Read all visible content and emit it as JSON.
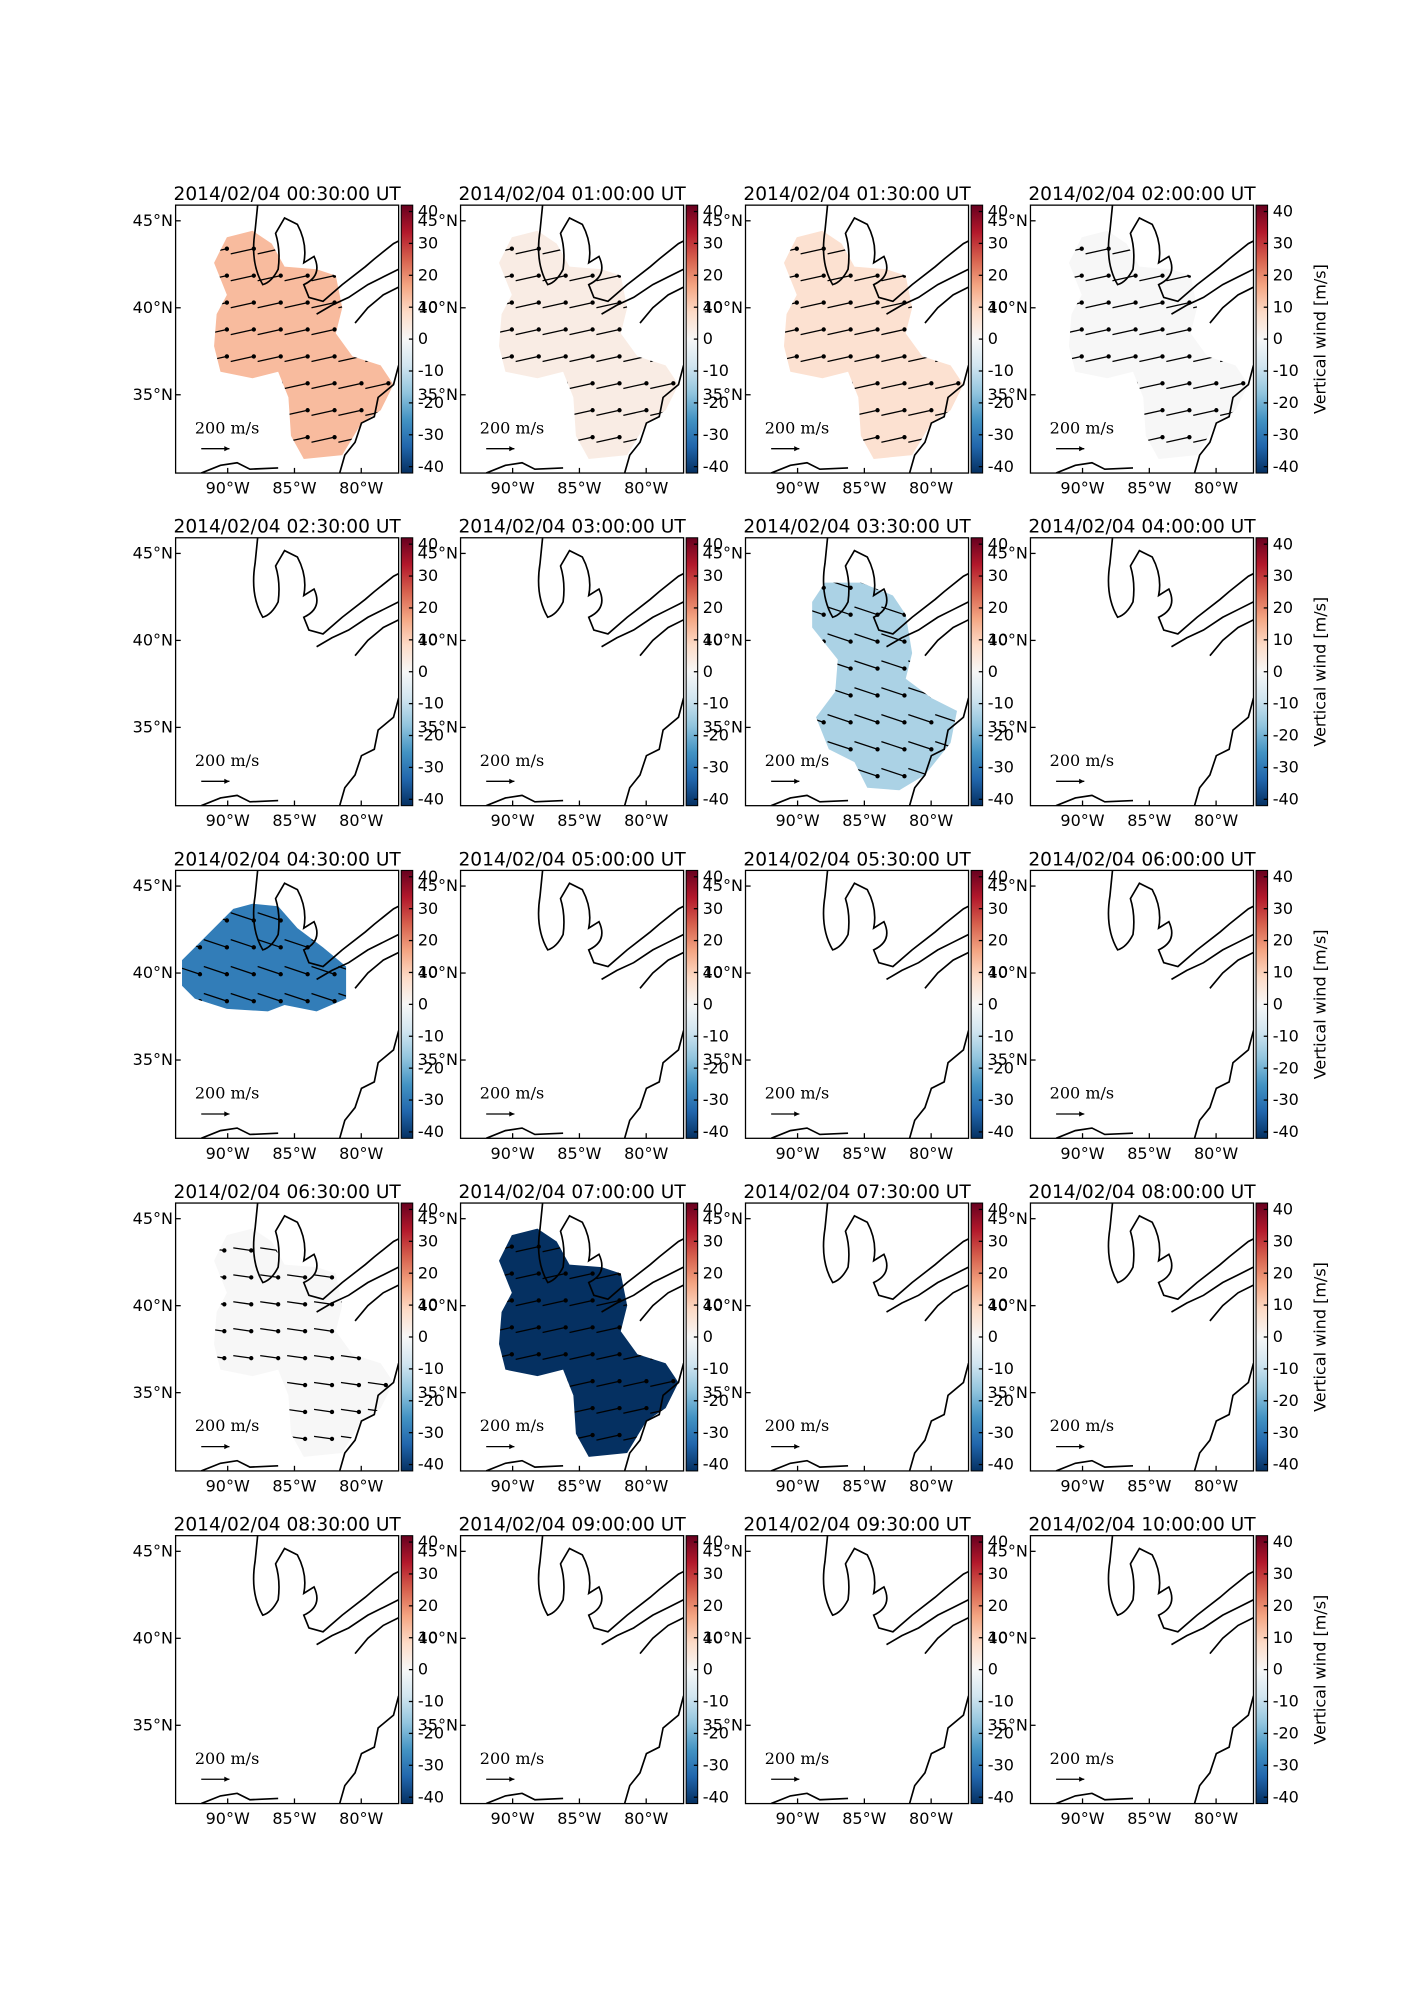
{
  "figure": {
    "xlim": [
      -93.9,
      -77.2
    ],
    "xticks": [
      {
        "value": -90,
        "label": "90°W"
      },
      {
        "value": -85,
        "label": "85°W"
      },
      {
        "value": -80,
        "label": "80°W"
      }
    ],
    "ylim": [
      30.5,
      45.9
    ],
    "yticks": [
      {
        "value": 45,
        "label": "45°N"
      },
      {
        "value": 40,
        "label": "40°N"
      },
      {
        "value": 35,
        "label": "35°N"
      }
    ],
    "colorbar": {
      "label": "Vertical wind [m/s]",
      "lim": [
        -42,
        42
      ],
      "ticks": [
        40,
        30,
        20,
        10,
        0,
        -10,
        -20,
        -30,
        -40
      ]
    },
    "quiver_key": "200 m/s",
    "panels": [
      {
        "title": "2014/02/04 00:30:00 UT",
        "vertical_wind": 8
      },
      {
        "title": "2014/02/04 01:00:00 UT",
        "vertical_wind": 2
      },
      {
        "title": "2014/02/04 01:30:00 UT",
        "vertical_wind": 4
      },
      {
        "title": "2014/02/04 02:00:00 UT",
        "vertical_wind": 0
      },
      {
        "title": "2014/02/04 02:30:00 UT",
        "vertical_wind": null
      },
      {
        "title": "2014/02/04 03:00:00 UT",
        "vertical_wind": null
      },
      {
        "title": "2014/02/04 03:30:00 UT",
        "vertical_wind": -8
      },
      {
        "title": "2014/02/04 04:00:00 UT",
        "vertical_wind": null
      },
      {
        "title": "2014/02/04 04:30:00 UT",
        "vertical_wind": -25
      },
      {
        "title": "2014/02/04 05:00:00 UT",
        "vertical_wind": null
      },
      {
        "title": "2014/02/04 05:30:00 UT",
        "vertical_wind": null
      },
      {
        "title": "2014/02/04 06:00:00 UT",
        "vertical_wind": null
      },
      {
        "title": "2014/02/04 06:30:00 UT",
        "vertical_wind": 0
      },
      {
        "title": "2014/02/04 07:00:00 UT",
        "vertical_wind": -40
      },
      {
        "title": "2014/02/04 07:30:00 UT",
        "vertical_wind": null
      },
      {
        "title": "2014/02/04 08:00:00 UT",
        "vertical_wind": null
      },
      {
        "title": "2014/02/04 08:30:00 UT",
        "vertical_wind": null
      },
      {
        "title": "2014/02/04 09:00:00 UT",
        "vertical_wind": null
      },
      {
        "title": "2014/02/04 09:30:00 UT",
        "vertical_wind": null
      },
      {
        "title": "2014/02/04 10:00:00 UT",
        "vertical_wind": null
      }
    ]
  }
}
